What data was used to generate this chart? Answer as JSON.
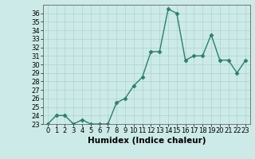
{
  "x": [
    0,
    1,
    2,
    3,
    4,
    5,
    6,
    7,
    8,
    9,
    10,
    11,
    12,
    13,
    14,
    15,
    16,
    17,
    18,
    19,
    20,
    21,
    22,
    23
  ],
  "y": [
    23,
    24,
    24,
    23,
    23.5,
    23,
    23,
    23,
    25.5,
    26,
    27.5,
    28.5,
    31.5,
    31.5,
    36.5,
    36,
    30.5,
    31,
    31,
    33.5,
    30.5,
    30.5,
    29,
    30.5
  ],
  "xlabel": "Humidex (Indice chaleur)",
  "xlim": [
    -0.5,
    23.5
  ],
  "ylim": [
    23,
    37
  ],
  "yticks": [
    23,
    24,
    25,
    26,
    27,
    28,
    29,
    30,
    31,
    32,
    33,
    34,
    35,
    36
  ],
  "xticks": [
    0,
    1,
    2,
    3,
    4,
    5,
    6,
    7,
    8,
    9,
    10,
    11,
    12,
    13,
    14,
    15,
    16,
    17,
    18,
    19,
    20,
    21,
    22,
    23
  ],
  "line_color": "#2d7d6e",
  "marker": "D",
  "marker_size": 2.5,
  "bg_color": "#cceae7",
  "grid_color": "#aed4d0",
  "tick_fontsize": 6,
  "xlabel_fontsize": 7.5
}
